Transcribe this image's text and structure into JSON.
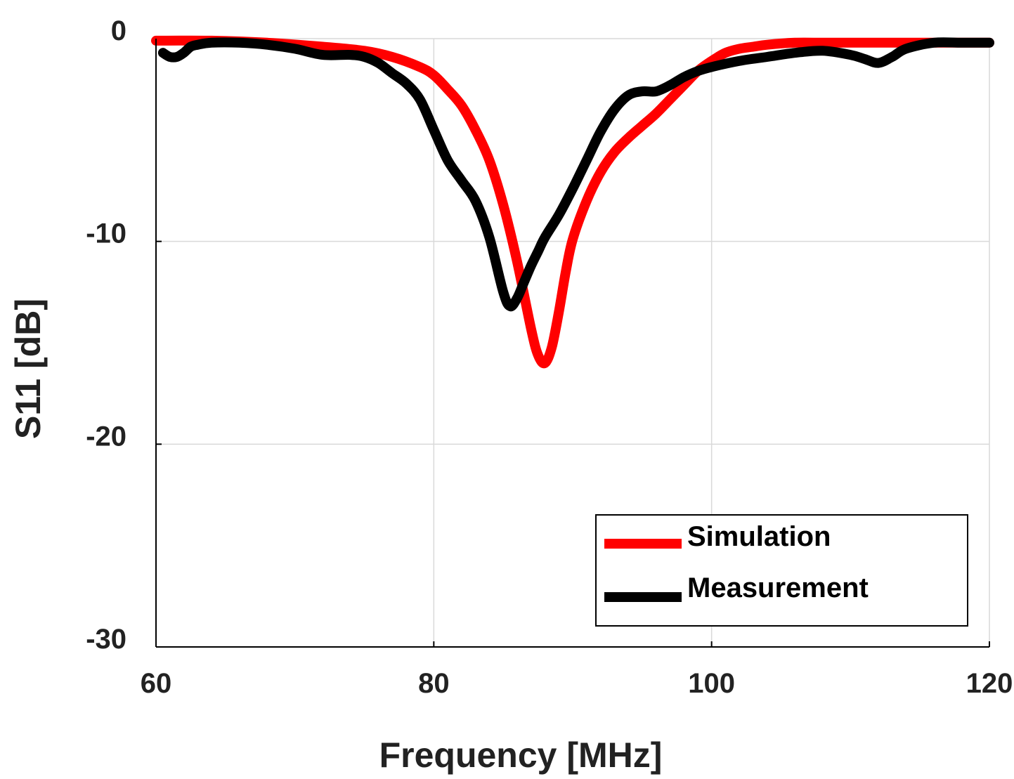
{
  "chart_data": {
    "type": "line",
    "title": "",
    "xlabel": "Frequency [MHz]",
    "ylabel": "S11 [dB]",
    "xlim": [
      60,
      120
    ],
    "ylim": [
      -30,
      0
    ],
    "xticks": [
      60,
      80,
      100,
      120
    ],
    "yticks": [
      0,
      -10,
      -20,
      -30
    ],
    "xtick_labels": [
      "60",
      "80",
      "100",
      "120"
    ],
    "ytick_labels": [
      "0",
      "-10",
      "-20",
      "-30"
    ],
    "grid": true,
    "legend_position": "bottom-right",
    "series": [
      {
        "name": "Simulation",
        "color": "#ff0000",
        "x": [
          60,
          64,
          68,
          72,
          75,
          77,
          79,
          80,
          81,
          82,
          83,
          84,
          85,
          86,
          87,
          87.5,
          88,
          88.5,
          89,
          89.5,
          90,
          91,
          92,
          93,
          94,
          95,
          96,
          97,
          98,
          99,
          100,
          101,
          102,
          103,
          104,
          106,
          108,
          110,
          115,
          120
        ],
        "y": [
          -0.1,
          -0.1,
          -0.2,
          -0.4,
          -0.6,
          -0.9,
          -1.4,
          -1.8,
          -2.5,
          -3.3,
          -4.5,
          -6.0,
          -8.2,
          -11.0,
          -14.3,
          -15.6,
          -16.0,
          -15.2,
          -13.5,
          -11.5,
          -9.9,
          -8.0,
          -6.6,
          -5.6,
          -4.9,
          -4.3,
          -3.7,
          -3.0,
          -2.3,
          -1.6,
          -1.1,
          -0.7,
          -0.5,
          -0.4,
          -0.3,
          -0.2,
          -0.2,
          -0.2,
          -0.2,
          -0.2
        ]
      },
      {
        "name": "Measurement",
        "color": "#000000",
        "x": [
          60.5,
          61,
          61.5,
          62,
          62.5,
          63,
          64,
          66,
          68,
          70,
          72,
          74,
          75,
          76,
          77,
          78,
          79,
          80,
          81,
          82,
          83,
          84,
          85,
          85.5,
          86,
          86.5,
          87,
          87.5,
          88,
          89,
          90,
          91,
          92,
          93,
          94,
          95,
          96,
          97,
          98,
          99,
          100,
          102,
          104,
          106,
          108,
          110,
          111,
          112,
          113,
          114,
          116,
          118,
          120
        ],
        "y": [
          -0.7,
          -0.9,
          -0.9,
          -0.7,
          -0.4,
          -0.3,
          -0.2,
          -0.2,
          -0.3,
          -0.5,
          -0.8,
          -0.8,
          -0.9,
          -1.2,
          -1.7,
          -2.2,
          -3.0,
          -4.5,
          -6.0,
          -7.0,
          -8.0,
          -9.8,
          -12.5,
          -13.2,
          -12.8,
          -12.0,
          -11.2,
          -10.5,
          -9.8,
          -8.7,
          -7.4,
          -6.0,
          -4.6,
          -3.5,
          -2.8,
          -2.6,
          -2.6,
          -2.3,
          -1.9,
          -1.6,
          -1.4,
          -1.1,
          -0.9,
          -0.7,
          -0.6,
          -0.8,
          -1.0,
          -1.2,
          -0.9,
          -0.5,
          -0.2,
          -0.2,
          -0.2
        ]
      }
    ]
  }
}
